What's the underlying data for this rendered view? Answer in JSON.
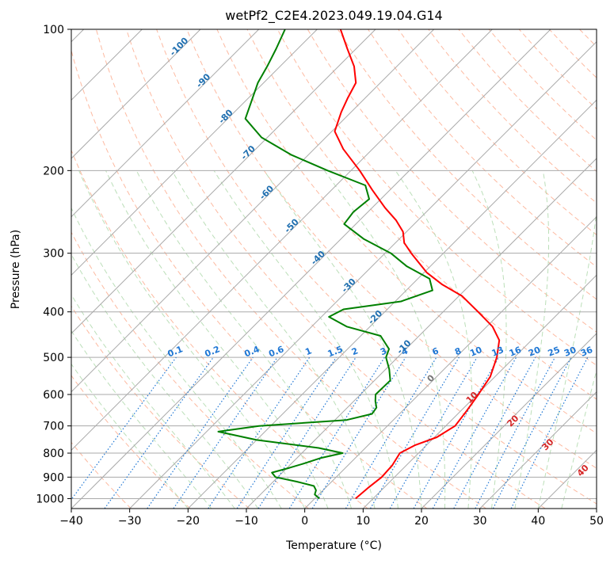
{
  "chart_data": {
    "type": "line",
    "title": "wetPf2_C2E4.2023.049.19.04.G14",
    "xlabel": "Temperature (°C)",
    "ylabel": "Pressure (hPa)",
    "xlim": [
      -40,
      50
    ],
    "ylim": [
      1050,
      100
    ],
    "y_scale": "log",
    "x_ticks": [
      -40,
      -30,
      -20,
      -10,
      0,
      10,
      20,
      30,
      40,
      50
    ],
    "y_ticks": [
      100,
      200,
      300,
      400,
      500,
      600,
      700,
      800,
      900,
      1000
    ],
    "grid": true,
    "skew_t": true,
    "colors": {
      "temperature": "#ff0000",
      "dewpoint": "#008000",
      "dry_adiabat": "#fdae91",
      "moist_adiabat": "#b5dcb1",
      "mixing_ratio": "#1f77d4",
      "isotherm": "#aaaaaa",
      "isotherm_label": "#1f6fb0",
      "dry_label": "#d62728",
      "special_label": "#777777"
    },
    "series": [
      {
        "name": "",
        "role": "temperature",
        "points": [
          [
            1000,
            7.0
          ],
          [
            950,
            7.3
          ],
          [
            900,
            7.8
          ],
          [
            850,
            7.6
          ],
          [
            800,
            6.8
          ],
          [
            770,
            8.0
          ],
          [
            740,
            10.4
          ],
          [
            700,
            11.6
          ],
          [
            650,
            11.0
          ],
          [
            600,
            10.2
          ],
          [
            550,
            9.2
          ],
          [
            500,
            7.0
          ],
          [
            460,
            4.5
          ],
          [
            430,
            1.0
          ],
          [
            400,
            -4.0
          ],
          [
            370,
            -9.5
          ],
          [
            350,
            -14.8
          ],
          [
            330,
            -19.5
          ],
          [
            300,
            -25.5
          ],
          [
            285,
            -28.5
          ],
          [
            270,
            -30.6
          ],
          [
            255,
            -33.8
          ],
          [
            240,
            -37.8
          ],
          [
            220,
            -43.0
          ],
          [
            200,
            -48.5
          ],
          [
            180,
            -55.0
          ],
          [
            165,
            -59.5
          ],
          [
            150,
            -61.7
          ],
          [
            140,
            -63.0
          ],
          [
            130,
            -64.2
          ],
          [
            120,
            -67.3
          ],
          [
            110,
            -71.5
          ],
          [
            100,
            -76.0
          ]
        ]
      },
      {
        "name": "",
        "role": "dewpoint",
        "points": [
          [
            1000,
            0.8
          ],
          [
            980,
            -0.7
          ],
          [
            960,
            -1.2
          ],
          [
            940,
            -2.3
          ],
          [
            920,
            -6.0
          ],
          [
            900,
            -10.4
          ],
          [
            880,
            -11.8
          ],
          [
            860,
            -9.6
          ],
          [
            840,
            -7.7
          ],
          [
            820,
            -6.0
          ],
          [
            800,
            -3.0
          ],
          [
            780,
            -8.0
          ],
          [
            750,
            -20.0
          ],
          [
            720,
            -28.0
          ],
          [
            700,
            -22.0
          ],
          [
            680,
            -8.0
          ],
          [
            660,
            -4.7
          ],
          [
            640,
            -5.0
          ],
          [
            620,
            -6.3
          ],
          [
            600,
            -7.4
          ],
          [
            560,
            -7.3
          ],
          [
            530,
            -9.4
          ],
          [
            500,
            -12.0
          ],
          [
            480,
            -12.9
          ],
          [
            450,
            -16.6
          ],
          [
            430,
            -24.0
          ],
          [
            410,
            -28.7
          ],
          [
            395,
            -27.5
          ],
          [
            380,
            -19.0
          ],
          [
            360,
            -15.5
          ],
          [
            340,
            -18.0
          ],
          [
            320,
            -24.0
          ],
          [
            300,
            -29.0
          ],
          [
            280,
            -36.0
          ],
          [
            260,
            -42.0
          ],
          [
            245,
            -42.5
          ],
          [
            230,
            -42.0
          ],
          [
            215,
            -45.0
          ],
          [
            200,
            -54.0
          ],
          [
            185,
            -63.0
          ],
          [
            170,
            -71.0
          ],
          [
            155,
            -77.0
          ],
          [
            140,
            -79.3
          ],
          [
            130,
            -81.0
          ],
          [
            120,
            -82.2
          ],
          [
            110,
            -83.7
          ],
          [
            100,
            -85.5
          ]
        ]
      }
    ],
    "isotherm_labels": [
      "-100",
      "-90",
      "-80",
      "-70",
      "-60",
      "-50",
      "-40",
      "-30",
      "-20",
      "-10",
      "0"
    ],
    "dry_adiabat_labels": [
      "10",
      "20",
      "30",
      "40"
    ],
    "mixing_ratio_labels": [
      "0.1",
      "0.2",
      "0.4",
      "0.6",
      "1",
      "1.5",
      "2",
      "3",
      "4",
      "6",
      "8",
      "10",
      "13",
      "16",
      "20",
      "25",
      "30",
      "36"
    ]
  }
}
